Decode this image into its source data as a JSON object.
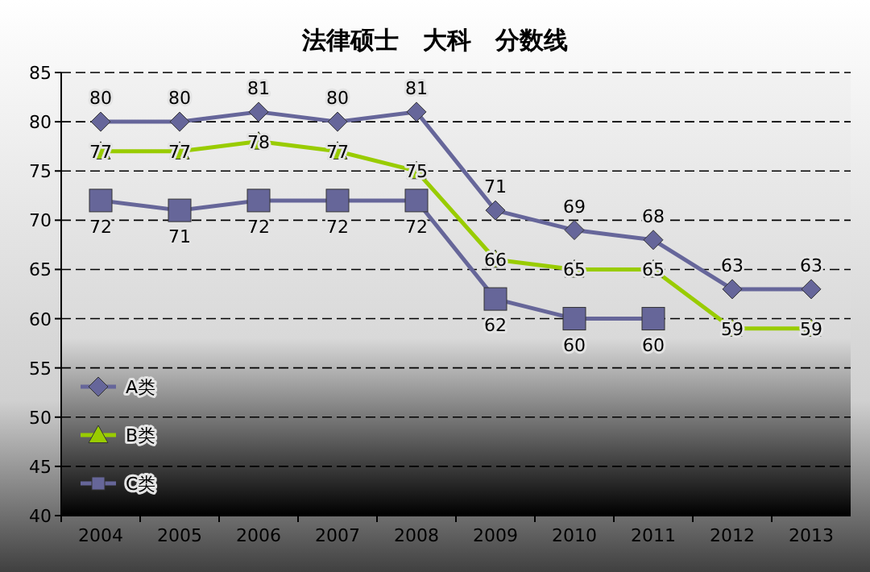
{
  "chart_data": {
    "type": "line",
    "title": "法律硕士　大科　分数线",
    "categories": [
      "2004",
      "2005",
      "2006",
      "2007",
      "2008",
      "2009",
      "2010",
      "2011",
      "2012",
      "2013"
    ],
    "series": [
      {
        "name": "A类",
        "color": "#66669a",
        "marker": "diamond",
        "values": [
          80,
          80,
          81,
          80,
          81,
          71,
          69,
          68,
          63,
          63
        ]
      },
      {
        "name": "B类",
        "color": "#99cc00",
        "marker": "triangle",
        "values": [
          77,
          77,
          78,
          77,
          75,
          66,
          65,
          65,
          59,
          59
        ]
      },
      {
        "name": "C类",
        "color": "#666699",
        "marker": "square",
        "values": [
          72,
          71,
          72,
          72,
          72,
          62,
          60,
          60,
          null,
          null
        ]
      }
    ],
    "ylim": [
      40,
      85
    ],
    "yticks": [
      40,
      45,
      50,
      55,
      60,
      65,
      70,
      75,
      80,
      85
    ],
    "grid": "y",
    "legend": "bottom left",
    "data_labels": true
  }
}
